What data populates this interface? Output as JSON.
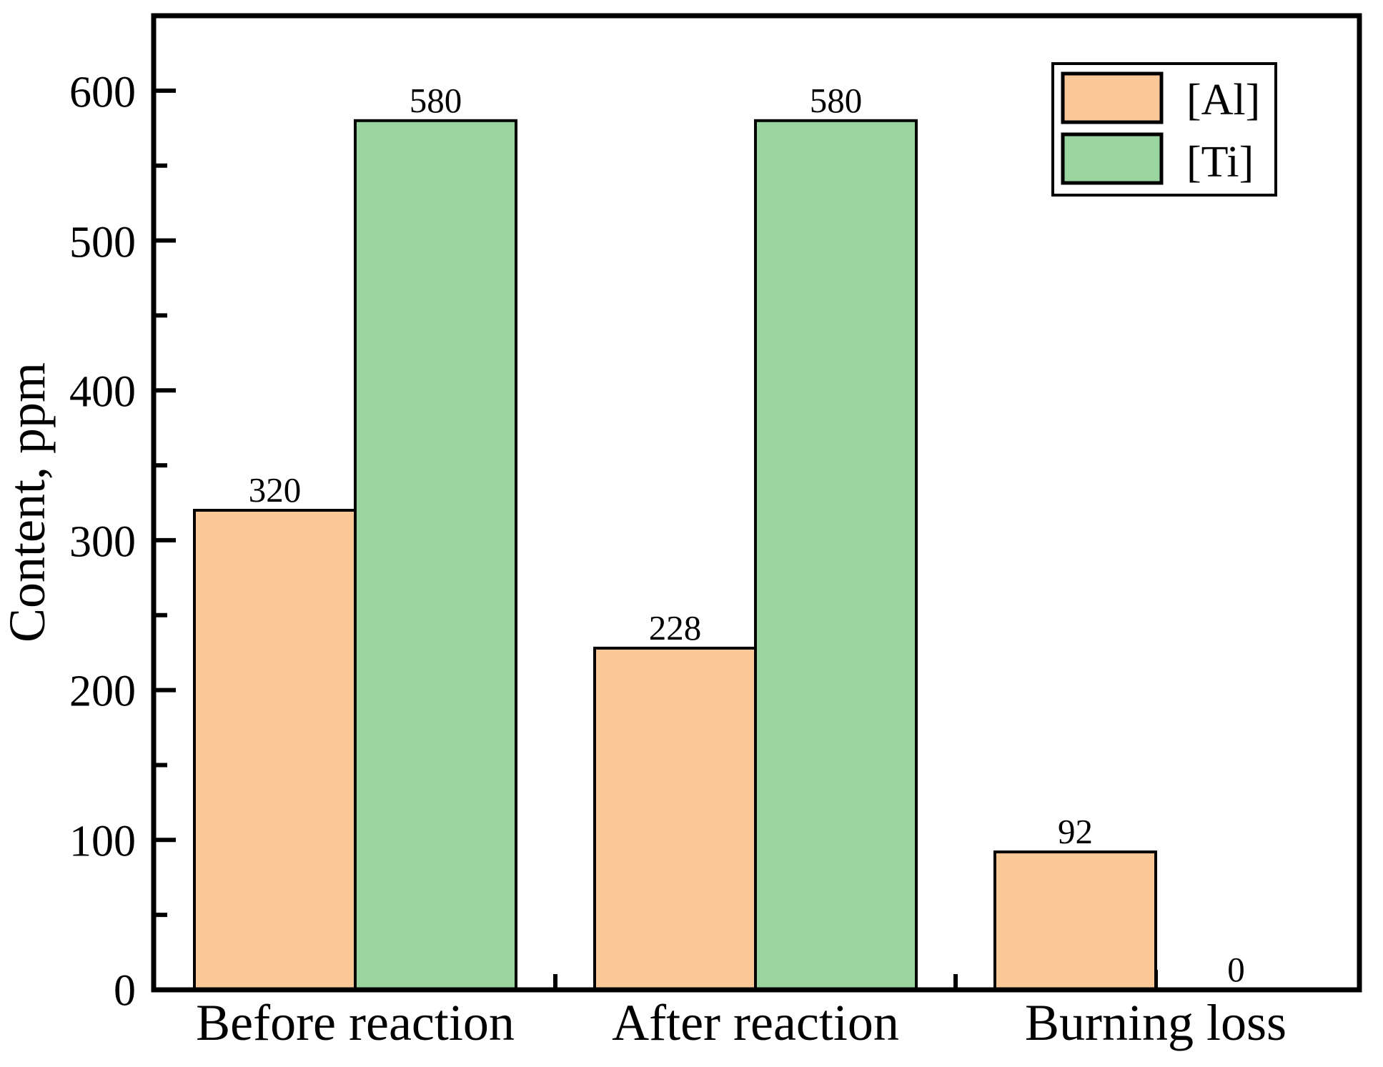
{
  "figure": {
    "background": "#FFFFFF",
    "axis_color": "#000000",
    "text_color": "#000000"
  },
  "chart_data": {
    "type": "bar",
    "title": "",
    "xlabel": "",
    "ylabel": "Content,  ppm",
    "categories": [
      "Before reaction",
      "After reaction",
      "Burning loss"
    ],
    "series": [
      {
        "name": "[Al]",
        "color": "#FBC997",
        "values": [
          320,
          228,
          92
        ]
      },
      {
        "name": "[Ti]",
        "color": "#9AD49E",
        "values": [
          580,
          580,
          0
        ]
      }
    ],
    "bar_value_labels": [
      [
        "320",
        "580"
      ],
      [
        "228",
        "580"
      ],
      [
        "92",
        "0"
      ]
    ],
    "ylim": [
      0,
      650
    ],
    "yticks": [
      0,
      100,
      200,
      300,
      400,
      500,
      600
    ],
    "ytick_labels": [
      "0",
      "100",
      "200",
      "300",
      "400",
      "500",
      "600"
    ],
    "yticks_minor": [
      50,
      150,
      250,
      350,
      450,
      550
    ],
    "grid": false,
    "legend": {
      "position": "top-right",
      "border": true,
      "entries": [
        "[Al]",
        "[Ti]"
      ]
    }
  }
}
